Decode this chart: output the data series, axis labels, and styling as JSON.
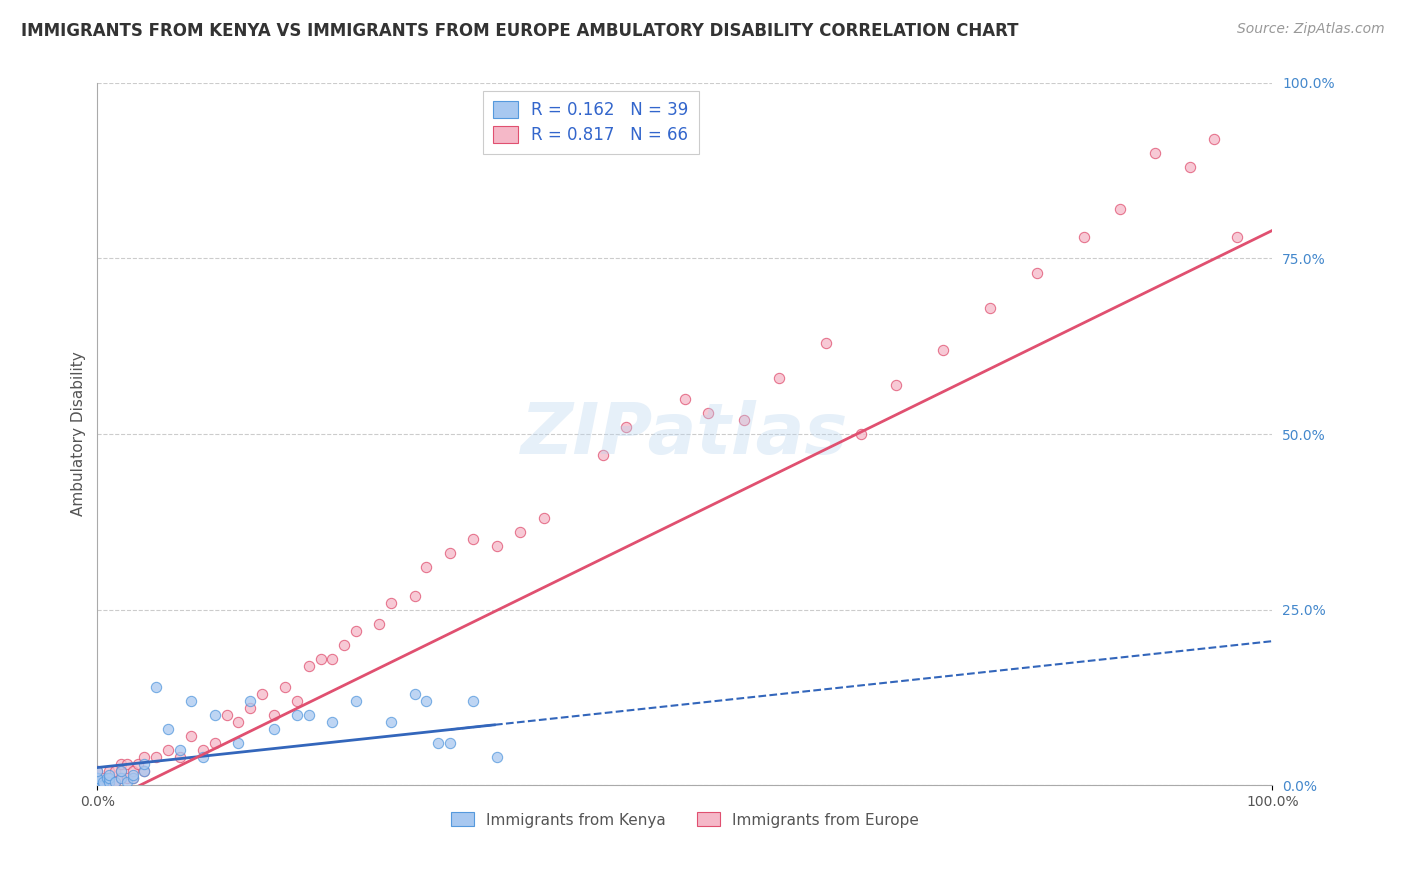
{
  "title": "IMMIGRANTS FROM KENYA VS IMMIGRANTS FROM EUROPE AMBULATORY DISABILITY CORRELATION CHART",
  "source": "Source: ZipAtlas.com",
  "ylabel": "Ambulatory Disability",
  "legend_kenya": "Immigrants from Kenya",
  "legend_europe": "Immigrants from Europe",
  "r_kenya": 0.162,
  "n_kenya": 39,
  "r_europe": 0.817,
  "n_europe": 66,
  "kenya_color": "#a8c8f0",
  "kenya_edge_color": "#5599dd",
  "europe_color": "#f5b8c8",
  "europe_edge_color": "#e05070",
  "kenya_line_color": "#3366bb",
  "europe_line_color": "#e05070",
  "background_color": "#ffffff",
  "grid_color": "#cccccc",
  "title_fontsize": 12,
  "label_fontsize": 11,
  "tick_fontsize": 10,
  "legend_fontsize": 12,
  "source_fontsize": 10,
  "scatter_size": 55,
  "kenya_scatter_x": [
    0.0,
    0.0,
    0.0,
    0.0,
    0.0,
    0.005,
    0.005,
    0.008,
    0.01,
    0.01,
    0.01,
    0.015,
    0.02,
    0.02,
    0.025,
    0.03,
    0.03,
    0.04,
    0.04,
    0.05,
    0.06,
    0.07,
    0.08,
    0.09,
    0.1,
    0.12,
    0.13,
    0.15,
    0.17,
    0.18,
    0.2,
    0.22,
    0.25,
    0.27,
    0.28,
    0.29,
    0.3,
    0.32,
    0.34
  ],
  "kenya_scatter_y": [
    0.0,
    0.005,
    0.01,
    0.01,
    0.02,
    0.0,
    0.005,
    0.01,
    0.005,
    0.01,
    0.015,
    0.005,
    0.01,
    0.02,
    0.005,
    0.01,
    0.015,
    0.02,
    0.03,
    0.14,
    0.08,
    0.05,
    0.12,
    0.04,
    0.1,
    0.06,
    0.12,
    0.08,
    0.1,
    0.1,
    0.09,
    0.12,
    0.09,
    0.13,
    0.12,
    0.06,
    0.06,
    0.12,
    0.04
  ],
  "europe_scatter_x": [
    0.0,
    0.0,
    0.0,
    0.0,
    0.005,
    0.005,
    0.01,
    0.01,
    0.01,
    0.015,
    0.015,
    0.02,
    0.02,
    0.02,
    0.025,
    0.025,
    0.03,
    0.03,
    0.035,
    0.04,
    0.04,
    0.05,
    0.06,
    0.07,
    0.08,
    0.09,
    0.1,
    0.11,
    0.12,
    0.13,
    0.14,
    0.15,
    0.16,
    0.17,
    0.18,
    0.19,
    0.2,
    0.21,
    0.22,
    0.24,
    0.25,
    0.27,
    0.28,
    0.3,
    0.32,
    0.34,
    0.36,
    0.38,
    0.43,
    0.45,
    0.5,
    0.52,
    0.55,
    0.58,
    0.62,
    0.65,
    0.68,
    0.72,
    0.76,
    0.8,
    0.84,
    0.87,
    0.9,
    0.93,
    0.95,
    0.97
  ],
  "europe_scatter_y": [
    0.0,
    0.005,
    0.01,
    0.02,
    0.005,
    0.01,
    0.0,
    0.01,
    0.02,
    0.005,
    0.02,
    0.01,
    0.02,
    0.03,
    0.01,
    0.03,
    0.01,
    0.02,
    0.03,
    0.02,
    0.04,
    0.04,
    0.05,
    0.04,
    0.07,
    0.05,
    0.06,
    0.1,
    0.09,
    0.11,
    0.13,
    0.1,
    0.14,
    0.12,
    0.17,
    0.18,
    0.18,
    0.2,
    0.22,
    0.23,
    0.26,
    0.27,
    0.31,
    0.33,
    0.35,
    0.34,
    0.36,
    0.38,
    0.47,
    0.51,
    0.55,
    0.53,
    0.52,
    0.58,
    0.63,
    0.5,
    0.57,
    0.62,
    0.68,
    0.73,
    0.78,
    0.82,
    0.9,
    0.88,
    0.92,
    0.78
  ],
  "right_ytick_labels": [
    "100.0%",
    "75.0%",
    "50.0%",
    "25.0%",
    "0.0%"
  ],
  "right_ytick_values": [
    1.0,
    0.75,
    0.5,
    0.25,
    0.0
  ],
  "kenya_line_slope": 0.18,
  "kenya_line_intercept": 0.025,
  "europe_line_slope": 0.82,
  "europe_line_intercept": -0.03
}
